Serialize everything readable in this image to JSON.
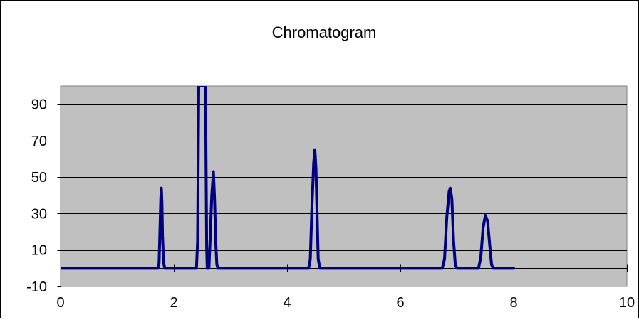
{
  "chart_data": {
    "type": "line",
    "title": "Chromatogram",
    "xlabel": "",
    "ylabel": "",
    "xlim": [
      0,
      10
    ],
    "ylim": [
      -10,
      100
    ],
    "x_ticks": [
      "0",
      "2",
      "4",
      "6",
      "8",
      "10"
    ],
    "y_ticks": [
      "-10",
      "10",
      "30",
      "50",
      "70",
      "90"
    ],
    "x_tick_values": [
      0,
      2,
      4,
      6,
      8,
      10
    ],
    "y_tick_values": [
      -10,
      10,
      30,
      50,
      70,
      90
    ],
    "grid": true,
    "plot_background": "#c0c0c0",
    "series": [
      {
        "color": "#000080",
        "points": [
          [
            0,
            0
          ],
          [
            1.72,
            0
          ],
          [
            1.74,
            3
          ],
          [
            1.755,
            20
          ],
          [
            1.77,
            38
          ],
          [
            1.78,
            44
          ],
          [
            1.79,
            36
          ],
          [
            1.8,
            18
          ],
          [
            1.82,
            3
          ],
          [
            1.84,
            0
          ],
          [
            2.4,
            0
          ],
          [
            2.42,
            15
          ],
          [
            2.44,
            100
          ],
          [
            2.46,
            100
          ],
          [
            2.5,
            100
          ],
          [
            2.54,
            100
          ],
          [
            2.56,
            100
          ],
          [
            2.58,
            12
          ],
          [
            2.59,
            0
          ],
          [
            2.62,
            0
          ],
          [
            2.64,
            15
          ],
          [
            2.67,
            40
          ],
          [
            2.7,
            53
          ],
          [
            2.72,
            38
          ],
          [
            2.74,
            15
          ],
          [
            2.76,
            2
          ],
          [
            2.78,
            0
          ],
          [
            4.38,
            0
          ],
          [
            4.41,
            5
          ],
          [
            4.44,
            35
          ],
          [
            4.47,
            58
          ],
          [
            4.49,
            65
          ],
          [
            4.51,
            55
          ],
          [
            4.53,
            30
          ],
          [
            4.55,
            5
          ],
          [
            4.58,
            0
          ],
          [
            6.74,
            0
          ],
          [
            6.78,
            5
          ],
          [
            6.82,
            28
          ],
          [
            6.86,
            42
          ],
          [
            6.88,
            44
          ],
          [
            6.91,
            38
          ],
          [
            6.94,
            15
          ],
          [
            6.97,
            2
          ],
          [
            7.0,
            0
          ],
          [
            7.38,
            0
          ],
          [
            7.42,
            6
          ],
          [
            7.46,
            22
          ],
          [
            7.5,
            29
          ],
          [
            7.54,
            26
          ],
          [
            7.58,
            12
          ],
          [
            7.61,
            2
          ],
          [
            7.64,
            0
          ],
          [
            8.0,
            0
          ]
        ]
      }
    ]
  }
}
